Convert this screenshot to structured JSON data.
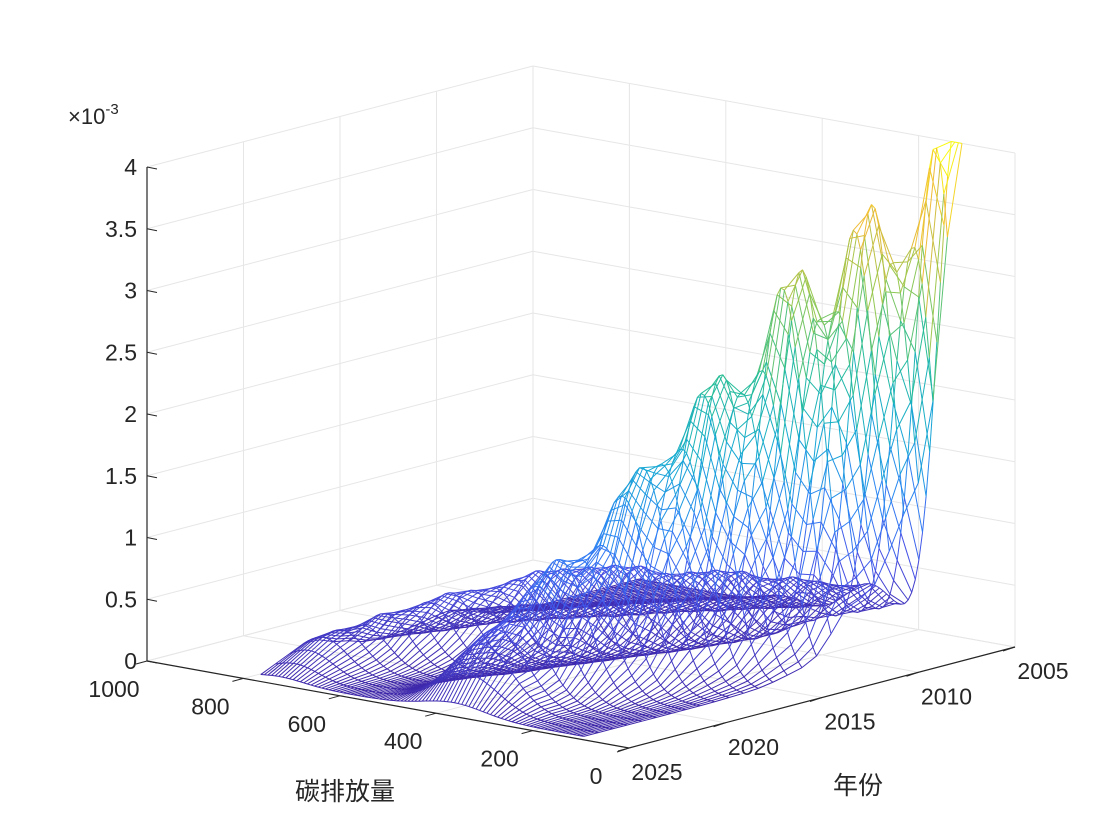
{
  "chart_data": {
    "type": "surface",
    "style": "mesh",
    "colormap": "parula",
    "grid": true,
    "x_axis": {
      "label": "碳排放量",
      "range": [
        0,
        1000
      ],
      "ticks": [
        0,
        200,
        400,
        600,
        800,
        1000
      ],
      "tick_labels": [
        "0",
        "200",
        "400",
        "600",
        "800",
        "1000"
      ]
    },
    "y_axis": {
      "label": "年份",
      "range": [
        2005,
        2025
      ],
      "ticks": [
        2005,
        2010,
        2015,
        2020,
        2025
      ],
      "tick_labels": [
        "2005",
        "2010",
        "2015",
        "2020",
        "2025"
      ]
    },
    "z_axis": {
      "label": "",
      "range": [
        0,
        0.004
      ],
      "exponent_base": "×10",
      "exponent_power": "-3",
      "ticks": [
        0,
        0.0005,
        0.001,
        0.0015,
        0.002,
        0.0025,
        0.003,
        0.0035,
        0.004
      ],
      "tick_labels": [
        "0",
        "0.5",
        "1",
        "1.5",
        "2",
        "2.5",
        "3",
        "3.5",
        "4"
      ]
    },
    "series": [
      {
        "years": [
          2005,
          2006,
          2007,
          2008,
          2009,
          2010,
          2011,
          2012,
          2013,
          2014,
          2015,
          2016,
          2017,
          2018,
          2019,
          2020,
          2021,
          2022
        ],
        "peak_emission": [
          120,
          140,
          160,
          175,
          185,
          190,
          200,
          215,
          230,
          245,
          260,
          275,
          290,
          305,
          320,
          340,
          360,
          380
        ],
        "peak_density": [
          0.0039,
          0.0036,
          0.0034,
          0.0033,
          0.0031,
          0.003,
          0.0029,
          0.0028,
          0.0025,
          0.0022,
          0.0021,
          0.002,
          0.0016,
          0.0014,
          0.0012,
          0.001,
          0.0008,
          0.0007
        ],
        "secondary_emission": [
          300,
          330,
          360,
          390,
          420,
          450,
          480,
          510,
          540,
          570,
          600,
          620,
          640,
          660,
          680,
          700,
          720,
          740
        ],
        "secondary_density": [
          0.0003,
          0.0003,
          0.0004,
          0.0004,
          0.0005,
          0.0005,
          0.0005,
          0.0006,
          0.0006,
          0.0006,
          0.0006,
          0.0005,
          0.0005,
          0.0005,
          0.0004,
          0.0004,
          0.0003,
          0.0003
        ]
      }
    ]
  }
}
